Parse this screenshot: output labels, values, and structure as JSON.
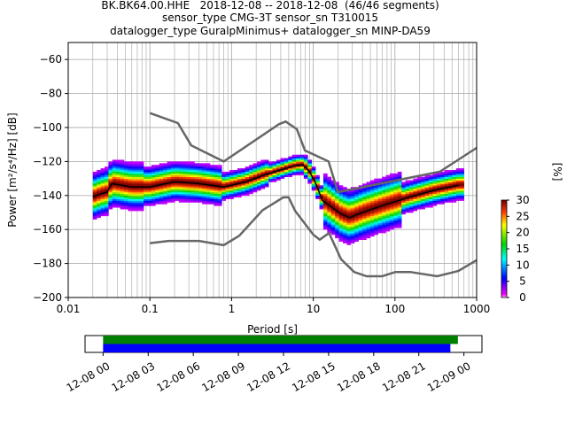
{
  "titles": {
    "line1": "BK.BK64.00.HHE   2018-12-08 -- 2018-12-08  (46/46 segments)",
    "line2": "sensor_type CMG-3T sensor_sn T310015",
    "line3": "datalogger_type GuralpMinimus+ datalogger_sn MINP-DA59"
  },
  "chart_data": [
    {
      "type": "heatmap",
      "title": "BK.BK64.00.HHE   2018-12-08 -- 2018-12-08  (46/46 segments)",
      "xlabel": "Period [s]",
      "ylabel": "Power [m²/s⁴/Hz] [dB]",
      "xscale": "log",
      "xlim": [
        0.01,
        1000
      ],
      "ylim": [
        -200,
        -50
      ],
      "x_ticks": [
        "0.01",
        "0.1",
        "1",
        "10",
        "100",
        "1000"
      ],
      "y_ticks": [
        "−200",
        "−180",
        "−160",
        "−140",
        "−120",
        "−100",
        "−80",
        "−60"
      ],
      "grid": true,
      "colorbar": {
        "label": "[%]",
        "range": [
          0,
          30
        ],
        "ticks": [
          "0",
          "5",
          "10",
          "15",
          "20",
          "25",
          "30"
        ]
      },
      "noise_model_high": [
        [
          0.1,
          -91.5
        ],
        [
          0.22,
          -97.4
        ],
        [
          0.32,
          -110.5
        ],
        [
          0.8,
          -120
        ],
        [
          3.8,
          -98
        ],
        [
          4.6,
          -96.5
        ],
        [
          6.3,
          -101
        ],
        [
          7.9,
          -113.5
        ],
        [
          15.4,
          -120
        ],
        [
          20,
          -138
        ],
        [
          354.8,
          -126
        ],
        [
          1000,
          -112
        ]
      ],
      "noise_model_low": [
        [
          0.1,
          -168
        ],
        [
          0.17,
          -166.7
        ],
        [
          0.4,
          -166.7
        ],
        [
          0.8,
          -169.2
        ],
        [
          1.24,
          -163.7
        ],
        [
          2.4,
          -148.6
        ],
        [
          4.3,
          -141.1
        ],
        [
          5,
          -141.1
        ],
        [
          6,
          -149
        ],
        [
          10,
          -163
        ],
        [
          12,
          -166
        ],
        [
          15.6,
          -162.1
        ],
        [
          21.9,
          -177.5
        ],
        [
          31.6,
          -185
        ],
        [
          45,
          -187.5
        ],
        [
          70,
          -187.5
        ],
        [
          101,
          -185
        ],
        [
          154,
          -185
        ],
        [
          328,
          -187.5
        ],
        [
          600,
          -184.4
        ],
        [
          1000,
          -178
        ]
      ],
      "median_curve": [
        [
          0.02,
          -141
        ],
        [
          0.025,
          -139
        ],
        [
          0.03,
          -138
        ],
        [
          0.034,
          -133
        ],
        [
          0.045,
          -134
        ],
        [
          0.06,
          -135
        ],
        [
          0.1,
          -135
        ],
        [
          0.2,
          -132
        ],
        [
          0.4,
          -133
        ],
        [
          0.8,
          -135
        ],
        [
          1.0,
          -134
        ],
        [
          1.5,
          -132
        ],
        [
          2.5,
          -128
        ],
        [
          4.0,
          -125
        ],
        [
          6.0,
          -122.5
        ],
        [
          7.5,
          -122
        ],
        [
          9.0,
          -126
        ],
        [
          10.5,
          -132
        ],
        [
          13,
          -143
        ],
        [
          17,
          -147
        ],
        [
          22,
          -151
        ],
        [
          28,
          -153
        ],
        [
          40,
          -150
        ],
        [
          70,
          -146
        ],
        [
          150,
          -141
        ],
        [
          300,
          -137
        ],
        [
          600,
          -134
        ]
      ]
    },
    {
      "type": "bar",
      "xlabel": "",
      "x_ticks": [
        "12-08 00",
        "12-08 03",
        "12-08 06",
        "12-08 09",
        "12-08 12",
        "12-08 15",
        "12-08 18",
        "12-08 21",
        "12-09 00"
      ],
      "xlim_hours": [
        -1.2,
        25.2
      ],
      "series": [
        {
          "color": "#008000",
          "start_hour": 0,
          "end_hour": 23.6
        },
        {
          "color": "#0000ff",
          "start_hour": 0,
          "end_hour": 23.1
        }
      ]
    }
  ]
}
